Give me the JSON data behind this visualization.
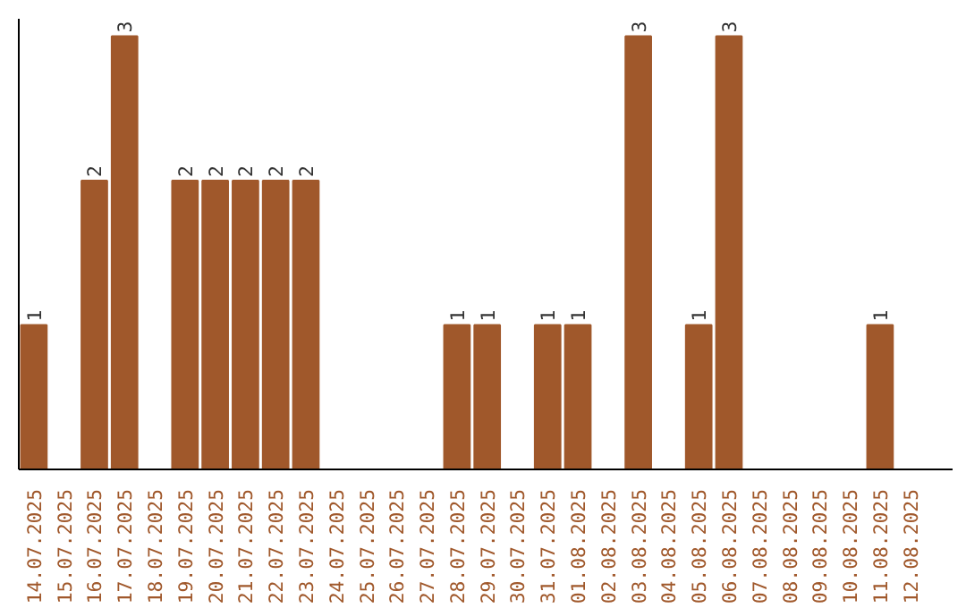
{
  "chart_data": {
    "type": "bar",
    "categories": [
      "14.07.2025",
      "15.07.2025",
      "16.07.2025",
      "17.07.2025",
      "18.07.2025",
      "19.07.2025",
      "20.07.2025",
      "21.07.2025",
      "22.07.2025",
      "23.07.2025",
      "24.07.2025",
      "25.07.2025",
      "26.07.2025",
      "27.07.2025",
      "28.07.2025",
      "29.07.2025",
      "30.07.2025",
      "31.07.2025",
      "01.08.2025",
      "02.08.2025",
      "03.08.2025",
      "04.08.2025",
      "05.08.2025",
      "06.08.2025",
      "07.08.2025",
      "08.08.2025",
      "09.08.2025",
      "10.08.2025",
      "11.08.2025",
      "12.08.2025"
    ],
    "values": [
      1,
      0,
      2,
      3,
      0,
      2,
      2,
      2,
      2,
      2,
      0,
      0,
      0,
      0,
      1,
      1,
      0,
      1,
      1,
      0,
      3,
      0,
      1,
      3,
      0,
      0,
      0,
      0,
      1,
      0
    ],
    "value_labels": [
      "1",
      null,
      "2",
      "3",
      null,
      "2",
      "2",
      "2",
      "2",
      "2",
      null,
      null,
      null,
      null,
      "1",
      "1",
      null,
      "1",
      "1",
      null,
      "3",
      null,
      "1",
      "3",
      null,
      null,
      null,
      null,
      "1",
      null
    ],
    "color": "#a0582b",
    "tick_labels": "x",
    "grid": false
  }
}
